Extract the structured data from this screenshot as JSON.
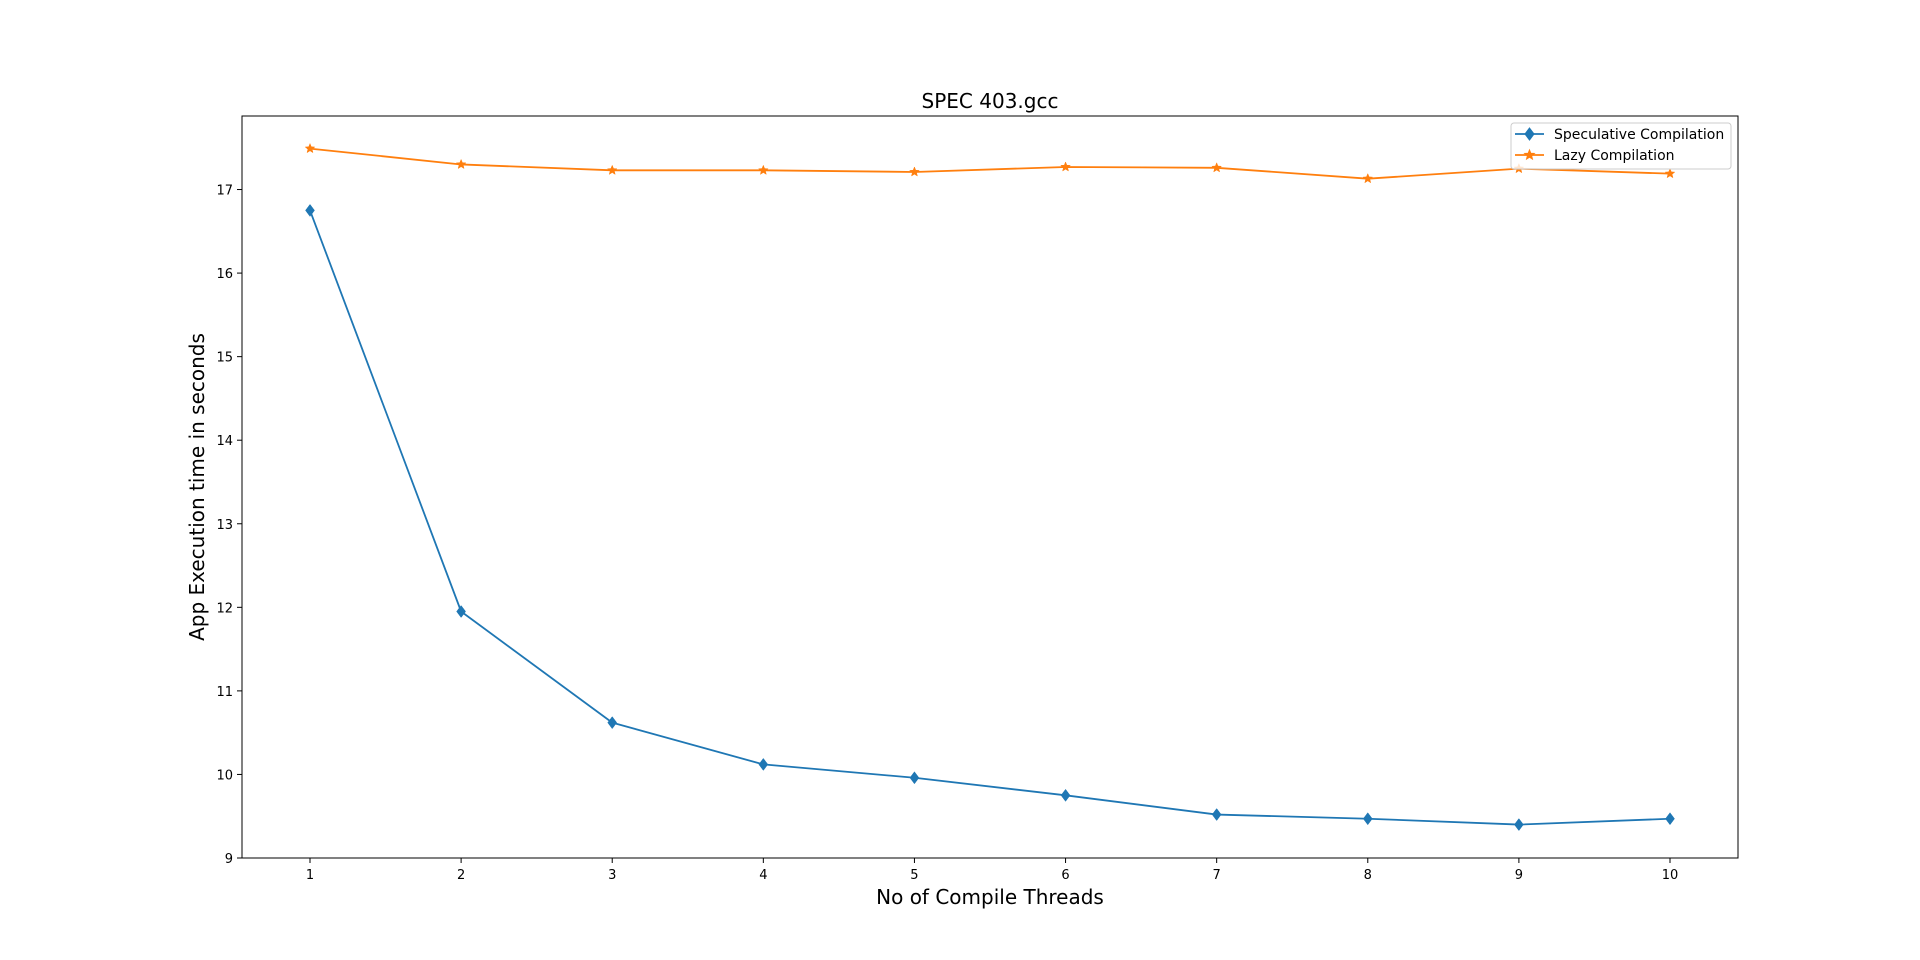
{
  "chart_data": {
    "type": "line",
    "title": "SPEC 403.gcc",
    "xlabel": "No of Compile Threads",
    "ylabel": "App Execution time in seconds",
    "x": [
      1,
      2,
      3,
      4,
      5,
      6,
      7,
      8,
      9,
      10
    ],
    "xlim": [
      0.55,
      10.45
    ],
    "ylim": [
      9.0,
      17.88
    ],
    "yticks": [
      9,
      10,
      11,
      12,
      13,
      14,
      15,
      16,
      17
    ],
    "grid": false,
    "legend_position": "top-right",
    "series": [
      {
        "name": "Speculative Compilation",
        "color": "#1f77b4",
        "marker": "diamond",
        "values": [
          16.75,
          11.95,
          10.62,
          10.12,
          9.96,
          9.75,
          9.52,
          9.47,
          9.4,
          9.47
        ]
      },
      {
        "name": "Lazy Compilation",
        "color": "#ff7f0e",
        "marker": "star",
        "values": [
          17.49,
          17.3,
          17.23,
          17.23,
          17.21,
          17.27,
          17.26,
          17.13,
          17.25,
          17.19
        ]
      }
    ]
  }
}
